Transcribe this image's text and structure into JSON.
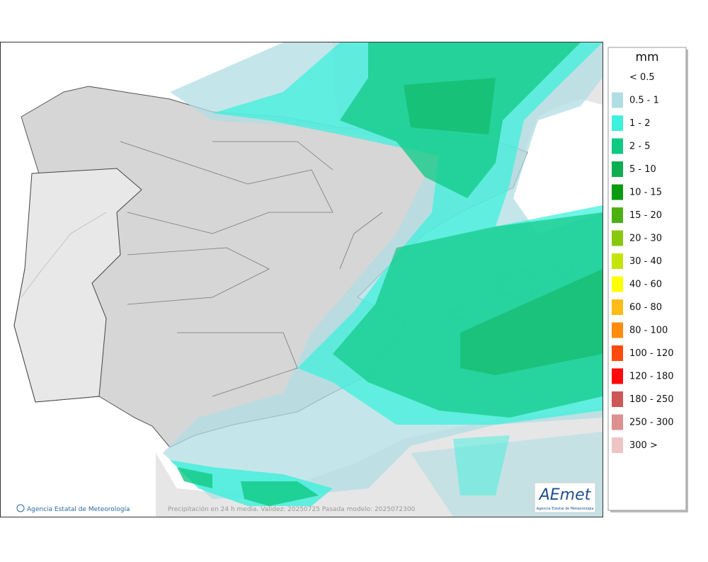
{
  "map": {
    "footer_left": "Agencia Estatal de Meteorología",
    "footer_center": "Precipitación en 24 h media. Validez: 20250725 Pasada modelo: 2025072300",
    "logo_title": "AEmet",
    "logo_subtitle": "Agencia Estatal de Meteorología"
  },
  "legend": {
    "unit": "mm",
    "items": [
      {
        "label": "< 0.5",
        "color": "#ffffff"
      },
      {
        "label": "0.5 - 1",
        "color": "#b0dde3"
      },
      {
        "label": "1 - 2",
        "color": "#3ff0dc"
      },
      {
        "label": "2 - 5",
        "color": "#10c983"
      },
      {
        "label": "5 - 10",
        "color": "#0cae4f"
      },
      {
        "label": "10 - 15",
        "color": "#0a9a10"
      },
      {
        "label": "15 - 20",
        "color": "#4cb012"
      },
      {
        "label": "20 - 30",
        "color": "#88c80e"
      },
      {
        "label": "30 - 40",
        "color": "#c4e40a"
      },
      {
        "label": "40 - 60",
        "color": "#ffff00"
      },
      {
        "label": "60 - 80",
        "color": "#ffbb16"
      },
      {
        "label": "80 - 100",
        "color": "#ff8c0e"
      },
      {
        "label": "100 - 120",
        "color": "#ff4a0e"
      },
      {
        "label": "120 - 180",
        "color": "#ff0a0a"
      },
      {
        "label": "180 - 250",
        "color": "#cd5656"
      },
      {
        "label": "250 - 300",
        "color": "#dd9090"
      },
      {
        "label": "300 >",
        "color": "#efc4c4"
      }
    ]
  }
}
